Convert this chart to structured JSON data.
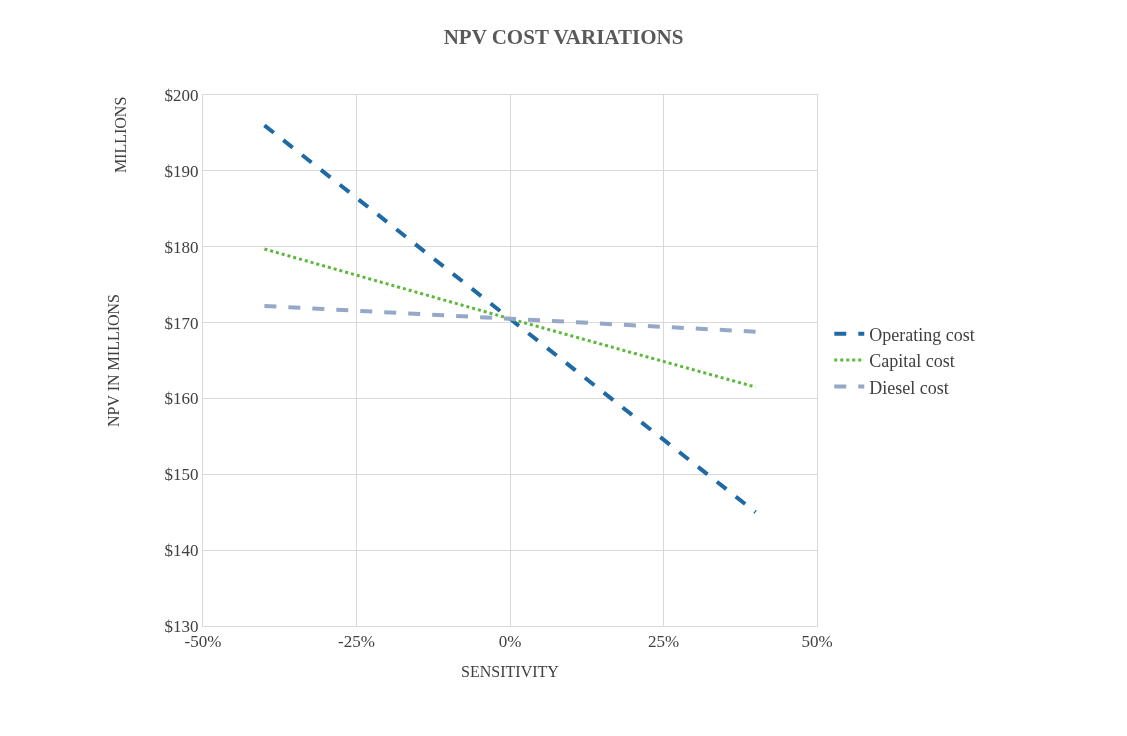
{
  "chart_data": {
    "type": "line",
    "title": "NPV COST VARIATIONS",
    "xlabel": "SENSITIVITY",
    "ylabel": "NPV IN MILLIONS",
    "annotations": [
      "MILLIONS"
    ],
    "x": [
      -40,
      0,
      40
    ],
    "series": [
      {
        "name": "Operating cost",
        "color": "#1f6aa5",
        "values": [
          196,
          170.5,
          145
        ],
        "line_style": "dashed"
      },
      {
        "name": "Capital cost",
        "color": "#5cb83c",
        "values": [
          179.7,
          170.5,
          161.5
        ],
        "line_style": "dotted"
      },
      {
        "name": "Diesel cost",
        "color": "#96a8c8",
        "values": [
          172.2,
          170.5,
          168.8
        ],
        "line_style": "dashed"
      }
    ],
    "xlim": [
      -50,
      50
    ],
    "xticks": [
      {
        "value": -50,
        "label": "-50%"
      },
      {
        "value": -25,
        "label": "-25%"
      },
      {
        "value": 0,
        "label": "0%"
      },
      {
        "value": 25,
        "label": "25%"
      },
      {
        "value": 50,
        "label": "50%"
      }
    ],
    "ylim": [
      130,
      200
    ],
    "yticks": [
      {
        "value": 130,
        "label": "$130"
      },
      {
        "value": 140,
        "label": "$140"
      },
      {
        "value": 150,
        "label": "$150"
      },
      {
        "value": 160,
        "label": "$160"
      },
      {
        "value": 170,
        "label": "$170"
      },
      {
        "value": 180,
        "label": "$180"
      },
      {
        "value": 190,
        "label": "$190"
      },
      {
        "value": 200,
        "label": "$200"
      }
    ],
    "grid": true,
    "legend": "right",
    "marker": "none"
  }
}
